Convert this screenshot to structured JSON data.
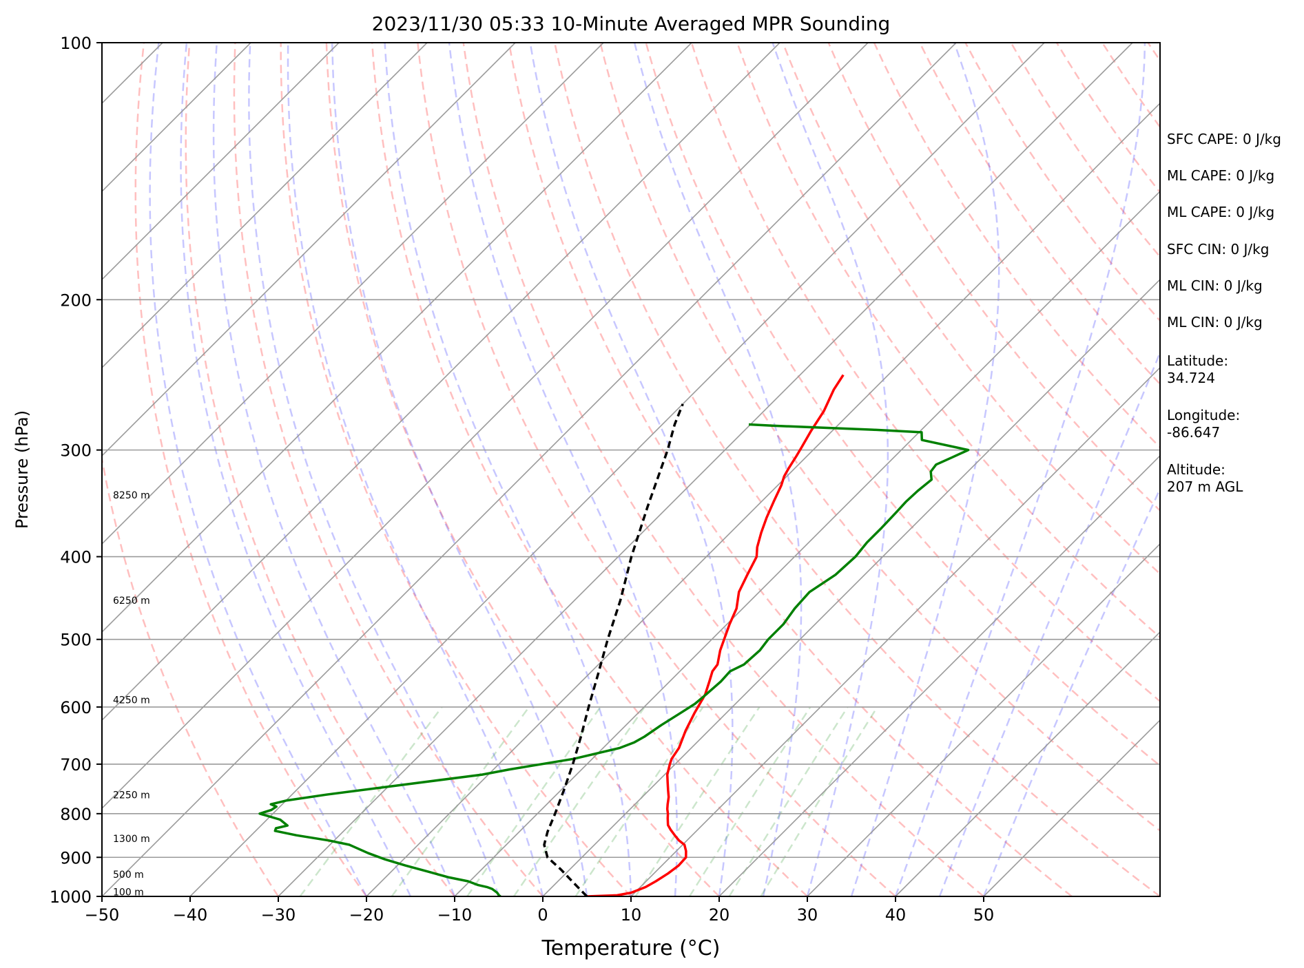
{
  "title": "2023/11/30 05:33 10-Minute Averaged MPR Sounding",
  "chart_data": {
    "type": "line",
    "subtype": "skew-T log-P",
    "xlabel": "Temperature (°C)",
    "ylabel": "Pressure (hPa)",
    "xlim": [
      -50,
      50
    ],
    "ylim": [
      1000,
      100
    ],
    "y_scale": "log",
    "grid": true,
    "x_ticks": [
      "−50",
      "−40",
      "−30",
      "−20",
      "−10",
      "0",
      "10",
      "20",
      "30",
      "40",
      "50"
    ],
    "y_ticks": [
      "100",
      "200",
      "300",
      "400",
      "500",
      "600",
      "700",
      "800",
      "900",
      "1000"
    ],
    "series": [
      {
        "role": "temperature",
        "color": "#ff0000",
        "points": [
          [
            1000,
            5.0
          ],
          [
            997,
            8.3
          ],
          [
            990,
            9.6
          ],
          [
            975,
            10.6
          ],
          [
            960,
            11.1
          ],
          [
            940,
            11.6
          ],
          [
            920,
            11.9
          ],
          [
            900,
            11.8
          ],
          [
            885,
            11.1
          ],
          [
            870,
            10.2
          ],
          [
            860,
            9.1
          ],
          [
            850,
            8.2
          ],
          [
            835,
            6.9
          ],
          [
            825,
            6.1
          ],
          [
            810,
            5.3
          ],
          [
            800,
            4.8
          ],
          [
            790,
            4.2
          ],
          [
            780,
            3.7
          ],
          [
            765,
            3.0
          ],
          [
            750,
            2.1
          ],
          [
            735,
            1.2
          ],
          [
            720,
            0.3
          ],
          [
            700,
            -0.6
          ],
          [
            690,
            -1.0
          ],
          [
            670,
            -1.4
          ],
          [
            640,
            -2.6
          ],
          [
            610,
            -3.6
          ],
          [
            580,
            -4.5
          ],
          [
            560,
            -5.5
          ],
          [
            545,
            -6.3
          ],
          [
            535,
            -6.5
          ],
          [
            515,
            -7.8
          ],
          [
            500,
            -8.6
          ],
          [
            480,
            -9.7
          ],
          [
            460,
            -10.7
          ],
          [
            440,
            -12.3
          ],
          [
            420,
            -13.3
          ],
          [
            400,
            -14.3
          ],
          [
            390,
            -15.3
          ],
          [
            375,
            -16.5
          ],
          [
            360,
            -17.6
          ],
          [
            345,
            -18.6
          ],
          [
            330,
            -19.6
          ],
          [
            322,
            -20.3
          ],
          [
            315,
            -20.7
          ],
          [
            305,
            -21.2
          ],
          [
            298,
            -21.6
          ],
          [
            285,
            -22.4
          ],
          [
            270,
            -23.2
          ],
          [
            255,
            -24.5
          ],
          [
            245,
            -25.1
          ]
        ]
      },
      {
        "role": "dewpoint",
        "color": "#008000",
        "points": [
          [
            1000,
            -4.8
          ],
          [
            997,
            -5.1
          ],
          [
            990,
            -5.6
          ],
          [
            985,
            -6.1
          ],
          [
            980,
            -6.6
          ],
          [
            975,
            -7.4
          ],
          [
            970,
            -8.6
          ],
          [
            960,
            -10.2
          ],
          [
            950,
            -12.8
          ],
          [
            935,
            -15.9
          ],
          [
            920,
            -19.1
          ],
          [
            905,
            -22.1
          ],
          [
            890,
            -24.7
          ],
          [
            870,
            -27.8
          ],
          [
            860,
            -30.6
          ],
          [
            848,
            -34.9
          ],
          [
            838,
            -37.8
          ],
          [
            832,
            -38.0
          ],
          [
            826,
            -37.0
          ],
          [
            813,
            -38.5
          ],
          [
            800,
            -41.5
          ],
          [
            792,
            -40.6
          ],
          [
            785,
            -40.4
          ],
          [
            780,
            -41.3
          ],
          [
            772,
            -39.9
          ],
          [
            760,
            -36.1
          ],
          [
            720,
            -20.7
          ],
          [
            710,
            -18.2
          ],
          [
            690,
            -12.1
          ],
          [
            670,
            -8.1
          ],
          [
            660,
            -7.1
          ],
          [
            650,
            -6.6
          ],
          [
            630,
            -6.0
          ],
          [
            610,
            -5.2
          ],
          [
            595,
            -4.6
          ],
          [
            580,
            -4.4
          ],
          [
            560,
            -4.2
          ],
          [
            545,
            -4.3
          ],
          [
            535,
            -3.5
          ],
          [
            515,
            -3.3
          ],
          [
            500,
            -3.6
          ],
          [
            480,
            -3.6
          ],
          [
            460,
            -4.1
          ],
          [
            440,
            -4.3
          ],
          [
            420,
            -3.3
          ],
          [
            400,
            -3.1
          ],
          [
            385,
            -3.4
          ],
          [
            370,
            -3.4
          ],
          [
            355,
            -3.5
          ],
          [
            345,
            -3.6
          ],
          [
            335,
            -3.5
          ],
          [
            325,
            -3.2
          ],
          [
            318,
            -4.2
          ],
          [
            312,
            -4.4
          ],
          [
            306,
            -3.4
          ],
          [
            300,
            -2.4
          ],
          [
            292,
            -8.8
          ],
          [
            286,
            -9.7
          ],
          [
            284,
            -15.6
          ],
          [
            281,
            -27.2
          ],
          [
            280,
            -30.2
          ]
        ]
      },
      {
        "role": "parcel profile",
        "color": "#000000",
        "dashed": true,
        "points": [
          [
            1000,
            5.0
          ],
          [
            960,
            1.6
          ],
          [
            930,
            -1.0
          ],
          [
            900,
            -3.9
          ],
          [
            870,
            -5.7
          ],
          [
            840,
            -6.8
          ],
          [
            800,
            -8.0
          ],
          [
            750,
            -9.7
          ],
          [
            700,
            -11.6
          ],
          [
            650,
            -13.8
          ],
          [
            600,
            -16.3
          ],
          [
            550,
            -18.9
          ],
          [
            500,
            -21.8
          ],
          [
            450,
            -24.8
          ],
          [
            400,
            -28.5
          ],
          [
            350,
            -32.3
          ],
          [
            300,
            -36.5
          ],
          [
            280,
            -38.6
          ],
          [
            265,
            -40.0
          ]
        ]
      }
    ],
    "height_markers": [
      "8250 m",
      "6250 m",
      "4250 m",
      "2250 m",
      "1300 m",
      "500 m",
      "100 m"
    ]
  },
  "info": {
    "sfc_cape": "SFC CAPE: 0 J/kg",
    "ml_cape_1": "ML CAPE: 0 J/kg",
    "ml_cape_2": "ML CAPE: 0 J/kg",
    "sfc_cin": "SFC CIN: 0 J/kg",
    "ml_cin_1": "ML CIN: 0 J/kg",
    "ml_cin_2": "ML CIN: 0 J/kg",
    "latitude": "Latitude:\n34.724",
    "longitude": "Longitude:\n-86.647",
    "altitude": "Altitude:\n207 m AGL"
  }
}
